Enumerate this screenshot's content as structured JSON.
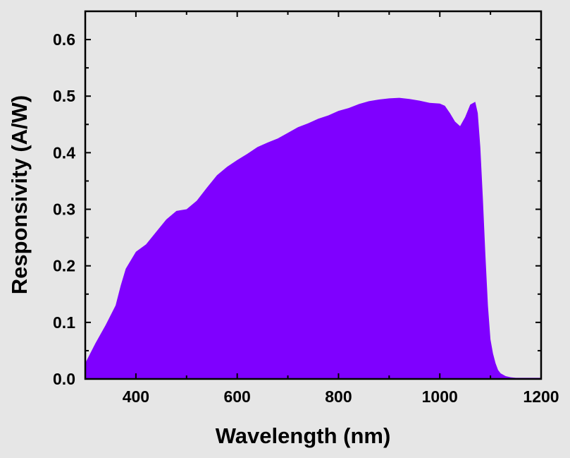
{
  "chart_data": {
    "type": "area",
    "title": "",
    "xlabel": "Wavelength (nm)",
    "ylabel": "Responsivity (A/W)",
    "xlim": [
      300,
      1200
    ],
    "ylim": [
      0,
      0.65
    ],
    "x_ticks": [
      400,
      600,
      800,
      1000,
      1200
    ],
    "x_tick_labels": [
      "400",
      "600",
      "800",
      "1000",
      "1200"
    ],
    "y_ticks": [
      0.0,
      0.1,
      0.2,
      0.3,
      0.4,
      0.5,
      0.6
    ],
    "y_tick_labels": [
      "0.0",
      "0.1",
      "0.2",
      "0.3",
      "0.4",
      "0.5",
      "0.6"
    ],
    "grid": false,
    "legend": "none",
    "fill_color": "#7f00ff",
    "background_color": "#e6e6e6",
    "series": [
      {
        "x": [
          300,
          320,
          340,
          360,
          370,
          380,
          400,
          420,
          440,
          460,
          480,
          500,
          520,
          540,
          560,
          580,
          600,
          620,
          640,
          660,
          680,
          700,
          720,
          740,
          760,
          780,
          800,
          820,
          840,
          860,
          880,
          900,
          920,
          940,
          960,
          980,
          1000,
          1010,
          1020,
          1030,
          1040,
          1050,
          1060,
          1070,
          1075,
          1080,
          1085,
          1090,
          1095,
          1100,
          1105,
          1110,
          1115,
          1120,
          1130,
          1140,
          1150,
          1160,
          1180,
          1200
        ],
        "values": [
          0.028,
          0.063,
          0.095,
          0.13,
          0.165,
          0.195,
          0.225,
          0.238,
          0.26,
          0.282,
          0.297,
          0.3,
          0.315,
          0.338,
          0.36,
          0.375,
          0.387,
          0.398,
          0.41,
          0.418,
          0.425,
          0.435,
          0.445,
          0.452,
          0.46,
          0.466,
          0.474,
          0.479,
          0.486,
          0.491,
          0.494,
          0.496,
          0.497,
          0.495,
          0.492,
          0.488,
          0.487,
          0.483,
          0.47,
          0.455,
          0.447,
          0.463,
          0.485,
          0.49,
          0.47,
          0.41,
          0.32,
          0.22,
          0.13,
          0.07,
          0.045,
          0.028,
          0.016,
          0.01,
          0.005,
          0.003,
          0.002,
          0.002,
          0.002,
          0.002
        ]
      }
    ]
  }
}
